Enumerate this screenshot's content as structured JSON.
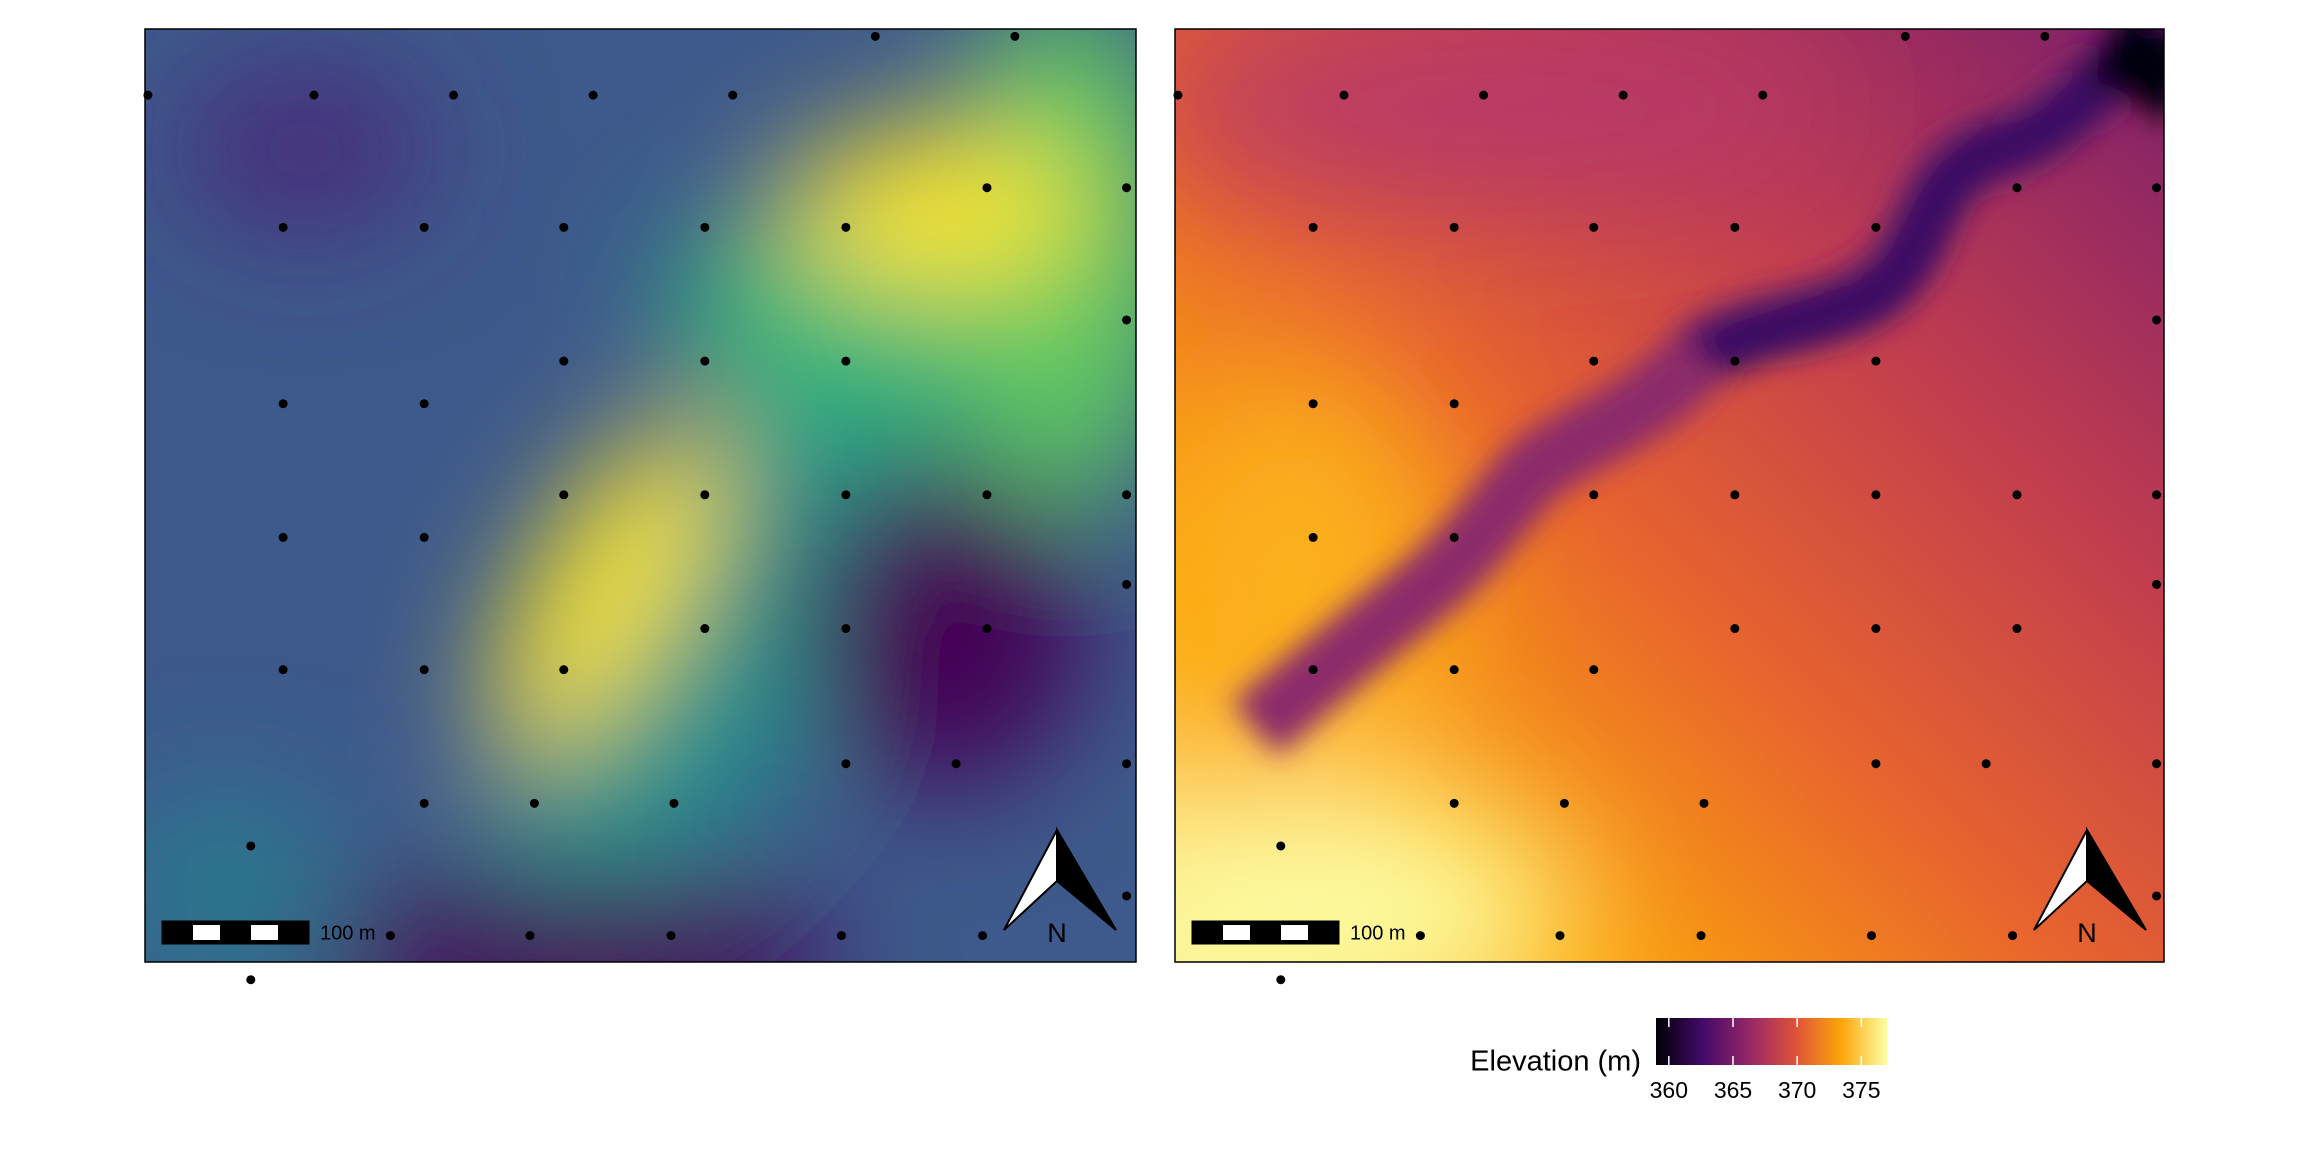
{
  "maps": [
    {
      "scale_bar_label": "100 m",
      "north_label": "N"
    },
    {
      "scale_bar_label": "100 m",
      "north_label": "N"
    }
  ],
  "legend": {
    "title": "Elevation (m)",
    "ticks": [
      360,
      365,
      370,
      375
    ],
    "range": [
      359,
      377
    ],
    "colormap": [
      "#000004",
      "#420a68",
      "#932667",
      "#dd513a",
      "#fca50a",
      "#fcffa4"
    ]
  }
}
